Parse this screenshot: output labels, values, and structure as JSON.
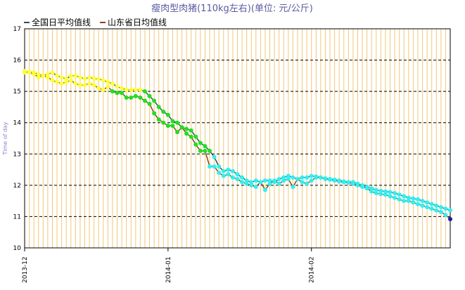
{
  "chart_data": {
    "type": "line",
    "title": "瘦肉型肉猪(110kg左右)(单位: 元/公斤)",
    "y_label": "Time of day",
    "x": [
      0,
      1,
      2,
      3,
      4,
      5,
      6,
      7,
      8,
      9,
      10,
      11,
      12,
      13,
      14,
      15,
      16,
      17,
      18,
      19,
      20,
      21,
      22,
      23,
      24,
      25,
      26,
      27,
      28,
      29,
      30,
      31,
      32,
      33,
      34,
      35,
      36,
      37,
      38,
      39,
      40,
      41,
      42,
      43,
      44,
      45,
      46,
      47,
      48,
      49,
      50,
      51,
      52,
      53,
      54,
      55,
      56,
      57,
      58,
      59,
      60,
      61,
      62,
      63,
      64,
      65,
      66,
      67,
      68,
      69,
      70,
      71,
      72,
      73,
      74,
      75,
      76,
      77,
      78,
      79,
      80,
      81,
      82,
      83,
      84,
      85,
      86,
      87,
      88,
      89,
      90,
      91,
      92
    ],
    "series": [
      {
        "name": "全国日平均值线",
        "color": "#2f4f4f",
        "values": [
          15.6,
          15.62,
          15.6,
          15.55,
          15.5,
          15.55,
          15.6,
          15.5,
          15.45,
          15.4,
          15.5,
          15.5,
          15.45,
          15.4,
          15.45,
          15.4,
          15.4,
          15.35,
          15.3,
          15.25,
          15.15,
          15.1,
          15.05,
          15.05,
          15.05,
          15.05,
          15.0,
          14.85,
          14.7,
          14.5,
          14.35,
          14.25,
          14.05,
          14.0,
          13.85,
          13.8,
          13.75,
          13.55,
          13.35,
          13.25,
          13.1,
          12.9,
          12.6,
          12.45,
          12.5,
          12.45,
          12.35,
          12.25,
          12.15,
          12.1,
          12.15,
          12.1,
          12.15,
          12.15,
          12.1,
          12.2,
          12.25,
          12.3,
          12.25,
          12.2,
          12.25,
          12.25,
          12.3,
          12.28,
          12.25,
          12.22,
          12.2,
          12.18,
          12.15,
          12.12,
          12.1,
          12.1,
          12.05,
          12.0,
          11.95,
          11.9,
          11.85,
          11.82,
          11.8,
          11.78,
          11.75,
          11.7,
          11.65,
          11.6,
          11.58,
          11.55,
          11.5,
          11.45,
          11.4,
          11.35,
          11.3,
          11.25,
          11.2
        ]
      },
      {
        "name": "山东省日均值线",
        "color": "#8b4513",
        "values": [
          15.65,
          15.6,
          15.55,
          15.45,
          15.5,
          15.45,
          15.35,
          15.3,
          15.25,
          15.3,
          15.35,
          15.25,
          15.2,
          15.2,
          15.25,
          15.2,
          15.1,
          15.05,
          15.15,
          15.0,
          14.95,
          14.95,
          14.8,
          14.8,
          14.85,
          14.8,
          14.7,
          14.6,
          14.3,
          14.1,
          14.0,
          13.9,
          13.9,
          13.7,
          13.85,
          13.65,
          13.55,
          13.3,
          13.1,
          13.1,
          12.6,
          12.6,
          12.4,
          12.3,
          12.35,
          12.25,
          12.2,
          12.1,
          12.05,
          12.0,
          11.95,
          12.1,
          11.85,
          12.05,
          12.15,
          12.05,
          12.15,
          12.2,
          11.95,
          12.2,
          12.1,
          12.05,
          12.15,
          12.25,
          12.25,
          12.2,
          12.18,
          12.15,
          12.12,
          12.1,
          12.08,
          12.05,
          12.0,
          11.95,
          11.9,
          11.8,
          11.75,
          11.72,
          11.7,
          11.65,
          11.6,
          11.55,
          11.5,
          11.5,
          11.45,
          11.4,
          11.35,
          11.3,
          11.25,
          11.2,
          11.15,
          11.05,
          10.92
        ]
      }
    ],
    "marker_bands": [
      {
        "above": 15,
        "color": "#ffff33"
      },
      {
        "above": 13,
        "color": "#22dd22"
      },
      {
        "above": 11,
        "color": "#33eeee"
      },
      {
        "above": 10,
        "color": "#1a1aa0"
      }
    ],
    "xlim": [
      0,
      92
    ],
    "xticks": [
      {
        "value": 0,
        "label": "2013-12"
      },
      {
        "value": 31,
        "label": "2014-01"
      },
      {
        "value": 62,
        "label": "2014-02"
      }
    ],
    "ylim": [
      10,
      17
    ],
    "yticks": [
      10,
      11,
      12,
      13,
      14,
      15,
      16,
      17
    ],
    "grid": true,
    "x_minor_grid_color": "#f0c878"
  }
}
